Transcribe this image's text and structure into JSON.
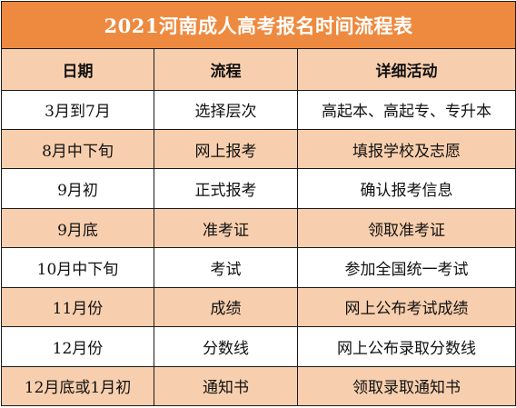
{
  "title": "2021河南成人高考报名时间流程表",
  "headers": {
    "date": "日期",
    "process": "流程",
    "details": "详细活动"
  },
  "rows": [
    {
      "date": "3月到7月",
      "process": "选择层次",
      "details": "高起本、高起专、专升本"
    },
    {
      "date": "8月中下旬",
      "process": "网上报考",
      "details": "填报学校及志愿"
    },
    {
      "date": "9月初",
      "process": "正式报考",
      "details": "确认报考信息"
    },
    {
      "date": "9月底",
      "process": "准考证",
      "details": "领取准考证"
    },
    {
      "date": "10月中下旬",
      "process": "考试",
      "details": "参加全国统一考试"
    },
    {
      "date": "11月份",
      "process": "成绩",
      "details": "网上公布考试成绩"
    },
    {
      "date": "12月份",
      "process": "分数线",
      "details": "网上公布录取分数线"
    },
    {
      "date": "12月底或1月初",
      "process": "通知书",
      "details": "领取录取通知书"
    }
  ],
  "colors": {
    "title_bg": "#ee8a3f",
    "stripe_bg": "#f8cfae",
    "border": "#1a1a1a"
  }
}
